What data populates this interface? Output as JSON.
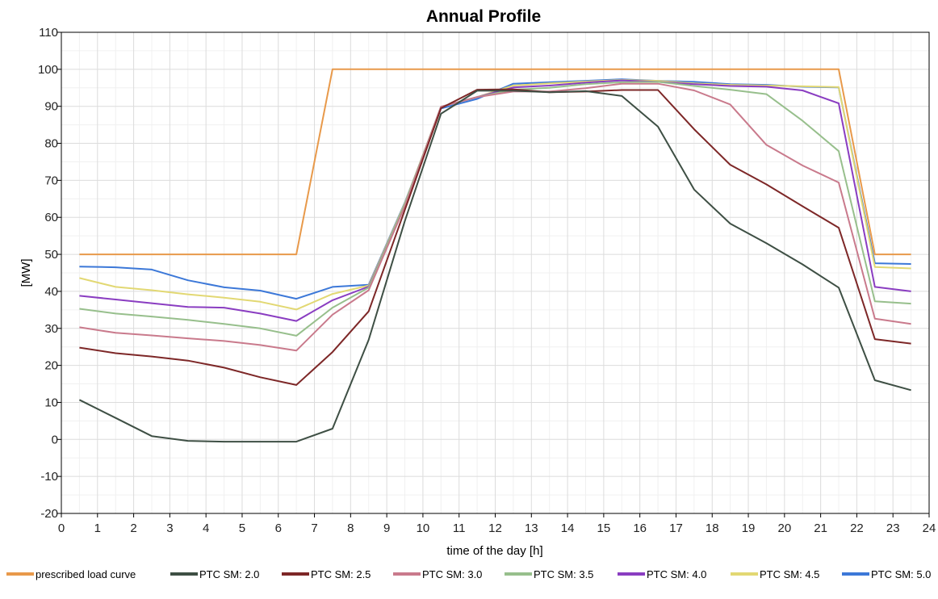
{
  "chart_data": {
    "type": "line",
    "title": "Annual Profile",
    "xlabel": "time of the day [h]",
    "ylabel": "[MW]",
    "xlim": [
      0,
      24
    ],
    "ylim": [
      -20,
      110
    ],
    "xticks": [
      "0",
      "1",
      "2",
      "3",
      "4",
      "5",
      "6",
      "7",
      "8",
      "9",
      "10",
      "11",
      "12",
      "13",
      "14",
      "15",
      "16",
      "17",
      "18",
      "19",
      "20",
      "21",
      "22",
      "23",
      "24"
    ],
    "yticks": [
      "-20",
      "-10",
      "0",
      "10",
      "20",
      "30",
      "40",
      "50",
      "60",
      "70",
      "80",
      "90",
      "100",
      "110"
    ],
    "grid": true,
    "legend_position": "bottom",
    "x": [
      0.5,
      1.5,
      2.5,
      3.5,
      4.5,
      5.5,
      6.5,
      7.5,
      8.5,
      9.5,
      10.5,
      11.5,
      12.5,
      13.5,
      14.5,
      15.5,
      16.5,
      17.5,
      18.5,
      19.5,
      20.5,
      21.5,
      22.5,
      23.5
    ],
    "series": [
      {
        "name": "prescribed load curve",
        "color": "#e8994a",
        "values": [
          50,
          50,
          50,
          50,
          50,
          50,
          50,
          100,
          100,
          100,
          100,
          100,
          100,
          100,
          100,
          100,
          100,
          100,
          100,
          100,
          100,
          100,
          50,
          50
        ]
      },
      {
        "name": "PTC SM: 2.0",
        "color": "#3e4f44",
        "values": [
          10.7,
          5.8,
          0.9,
          -0.4,
          -0.6,
          -0.6,
          -0.6,
          2.9,
          26.9,
          59,
          88,
          94.2,
          94.2,
          93.8,
          94.1,
          92.8,
          84.5,
          67.5,
          58.3,
          53,
          47.3,
          41,
          16,
          13.3
        ]
      },
      {
        "name": "PTC SM: 2.5",
        "color": "#7d2727",
        "values": [
          24.8,
          23.3,
          22.4,
          21.3,
          19.4,
          16.8,
          14.7,
          23.6,
          34.6,
          62,
          89.5,
          94.5,
          94.6,
          93.8,
          94,
          94.4,
          94.4,
          83.8,
          74.2,
          68.9,
          63,
          57.2,
          27.1,
          25.9
        ]
      },
      {
        "name": "PTC SM: 3.0",
        "color": "#c97a8c",
        "values": [
          30.3,
          28.8,
          28.1,
          27.3,
          26.6,
          25.5,
          24,
          33.7,
          40.3,
          63,
          89.9,
          92.5,
          94,
          94,
          94.9,
          96.1,
          96.1,
          94.3,
          90.5,
          79.6,
          74,
          69.4,
          32.6,
          31.2
        ]
      },
      {
        "name": "PTC SM: 3.5",
        "color": "#97bf8c",
        "values": [
          35.3,
          34,
          33.2,
          32.3,
          31.2,
          30,
          28,
          35.6,
          41,
          63.5,
          89.9,
          92.5,
          94.5,
          95,
          96,
          96.5,
          96.6,
          95.5,
          94.5,
          93.3,
          86.1,
          77.9,
          37.3,
          36.7
        ]
      },
      {
        "name": "PTC SM: 4.0",
        "color": "#8a3dc1",
        "values": [
          38.8,
          37.8,
          36.8,
          35.8,
          35.6,
          34,
          32,
          37.6,
          41.3,
          63.5,
          89.9,
          92.5,
          95.1,
          95.6,
          96.4,
          97,
          96.6,
          96,
          95.5,
          95.3,
          94.3,
          90.8,
          41.2,
          40
        ]
      },
      {
        "name": "PTC SM: 4.5",
        "color": "#e2d873",
        "values": [
          43.6,
          41.2,
          40.3,
          39.2,
          38.3,
          37.2,
          35.1,
          39.3,
          41.6,
          63.8,
          89.9,
          92.5,
          95.6,
          96.2,
          96.7,
          97.1,
          96.9,
          96.2,
          95.8,
          95.6,
          95.4,
          95.2,
          46.6,
          46.2
        ]
      },
      {
        "name": "PTC SM: 5.0",
        "color": "#3c78d8",
        "values": [
          46.7,
          46.5,
          45.9,
          43,
          41.1,
          40.2,
          38,
          41.2,
          41.8,
          64,
          89.4,
          92,
          96.1,
          96.5,
          96.9,
          97.3,
          96.9,
          96.6,
          96,
          95.8,
          95.3,
          95.1,
          47.6,
          47.4
        ]
      }
    ]
  }
}
